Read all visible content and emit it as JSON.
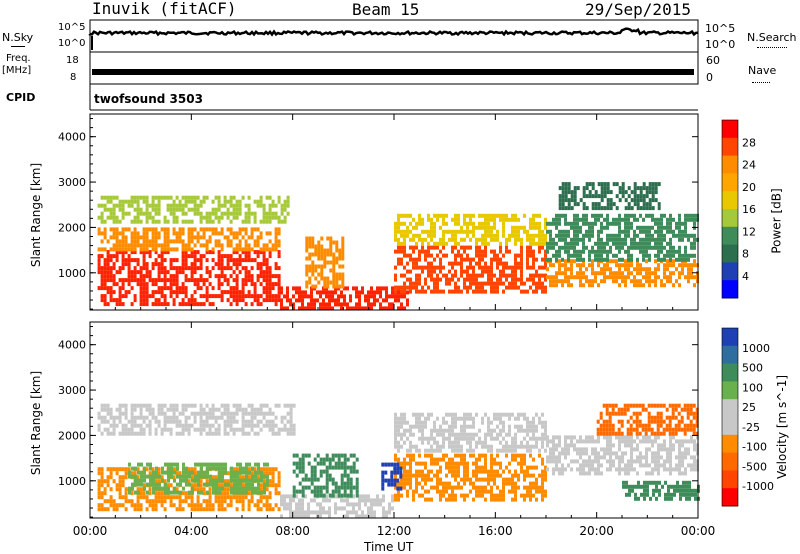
{
  "header": {
    "station": "Inuvik (fitACF)",
    "beam": "Beam 15",
    "date": "29/Sep/2015"
  },
  "left_labels": {
    "nsky": "N.Sky",
    "nsky_ticks": [
      "10^5",
      "10^0"
    ],
    "freq": "Freq.",
    "freq_unit": "[MHz]",
    "freq_ticks": [
      "18",
      "8"
    ],
    "cpid": "CPID"
  },
  "right_labels": {
    "nsearch": "N.Search",
    "nsearch_ticks": [
      "10^5",
      "10^0"
    ],
    "nave": "Nave",
    "nave_ticks": [
      "60",
      "0"
    ]
  },
  "cpid_text": "twofsound 3503",
  "xaxis": {
    "label": "Time UT",
    "ticks": [
      "00:00",
      "04:00",
      "08:00",
      "12:00",
      "16:00",
      "20:00",
      "00:00"
    ]
  },
  "chart_data": [
    {
      "type": "heatmap",
      "title": "",
      "xlabel": "",
      "ylabel": "Slant Range [km]",
      "yticks": [
        "1000",
        "2000",
        "3000",
        "4000"
      ],
      "ylim": [
        180,
        4500
      ],
      "xlim_hours": [
        0,
        24
      ],
      "colorbar": {
        "label": "Power [dB]",
        "ticks": [
          "28",
          "24",
          "20",
          "16",
          "12",
          "8",
          "4"
        ],
        "colors": [
          "#ff0000",
          "#ff4500",
          "#ff8c00",
          "#ffa500",
          "#e8c800",
          "#a6c93a",
          "#3d8c5a",
          "#2d6e4e",
          "#1e40b4",
          "#0000ff"
        ]
      },
      "bands": [
        {
          "t0": 0.3,
          "t1": 7.5,
          "r0": 300,
          "r1": 1500,
          "color": "#ff2200"
        },
        {
          "t0": 0.3,
          "t1": 7.5,
          "r0": 1500,
          "r1": 2000,
          "color": "#ff8c00"
        },
        {
          "t0": 0.3,
          "t1": 7.8,
          "r0": 2100,
          "r1": 2700,
          "color": "#a6c93a"
        },
        {
          "t0": 7.5,
          "t1": 12.5,
          "r0": 200,
          "r1": 700,
          "color": "#ff2200"
        },
        {
          "t0": 8.5,
          "t1": 10.0,
          "r0": 700,
          "r1": 1800,
          "color": "#ff8c00"
        },
        {
          "t0": 12.0,
          "t1": 18.0,
          "r0": 600,
          "r1": 1600,
          "color": "#ff4500"
        },
        {
          "t0": 12.0,
          "t1": 18.0,
          "r0": 1600,
          "r1": 2300,
          "color": "#e8c800"
        },
        {
          "t0": 18.0,
          "t1": 24.0,
          "r0": 700,
          "r1": 1300,
          "color": "#ff8c00"
        },
        {
          "t0": 18.0,
          "t1": 24.0,
          "r0": 1300,
          "r1": 2300,
          "color": "#3d8c5a"
        },
        {
          "t0": 18.5,
          "t1": 22.5,
          "r0": 2400,
          "r1": 3000,
          "color": "#2d6e4e"
        }
      ]
    },
    {
      "type": "heatmap",
      "title": "",
      "xlabel": "Time UT",
      "ylabel": "Slant Range [km]",
      "yticks": [
        "1000",
        "2000",
        "3000",
        "4000"
      ],
      "ylim": [
        180,
        4500
      ],
      "xlim_hours": [
        0,
        24
      ],
      "colorbar": {
        "label": "Velocity [m s^-1]",
        "ticks": [
          "1000",
          "500",
          "100",
          "25",
          "-25",
          "-100",
          "-500",
          "-1000"
        ],
        "colors": [
          "#1e40b4",
          "#2d6e9e",
          "#3d8c5a",
          "#6ab04c",
          "#c8c8c8",
          "#c8c8c8",
          "#ff8c00",
          "#ff6a00",
          "#ff4500",
          "#ff0000"
        ]
      },
      "bands": [
        {
          "t0": 0.3,
          "t1": 7.5,
          "r0": 400,
          "r1": 1300,
          "color": "#ff8c00"
        },
        {
          "t0": 1.5,
          "t1": 7.0,
          "r0": 700,
          "r1": 1400,
          "color": "#6ab04c"
        },
        {
          "t0": 0.3,
          "t1": 8.0,
          "r0": 2000,
          "r1": 2700,
          "color": "#c8c8c8"
        },
        {
          "t0": 7.5,
          "t1": 12.0,
          "r0": 200,
          "r1": 700,
          "color": "#c8c8c8"
        },
        {
          "t0": 8.0,
          "t1": 10.5,
          "r0": 700,
          "r1": 1600,
          "color": "#3d8c5a"
        },
        {
          "t0": 12.0,
          "t1": 18.0,
          "r0": 600,
          "r1": 1600,
          "color": "#ff8c00"
        },
        {
          "t0": 11.5,
          "t1": 12.3,
          "r0": 800,
          "r1": 1400,
          "color": "#1e40b4"
        },
        {
          "t0": 12.0,
          "t1": 18.0,
          "r0": 1700,
          "r1": 2500,
          "color": "#c8c8c8"
        },
        {
          "t0": 18.0,
          "t1": 24.0,
          "r0": 1200,
          "r1": 2000,
          "color": "#c8c8c8"
        },
        {
          "t0": 20.0,
          "t1": 24.0,
          "r0": 2000,
          "r1": 2700,
          "color": "#ff6a00"
        },
        {
          "t0": 21.0,
          "t1": 24.0,
          "r0": 600,
          "r1": 1000,
          "color": "#3d8c5a"
        }
      ]
    }
  ]
}
